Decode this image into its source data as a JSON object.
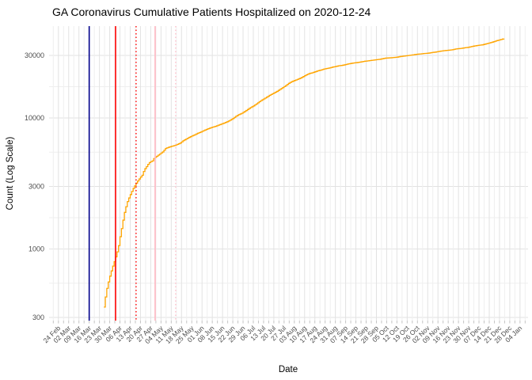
{
  "title": "GA Coronavirus Cumulative Patients Hospitalized on 2020-12-24",
  "chart_data": {
    "type": "line",
    "title": "GA Coronavirus Cumulative Patients Hospitalized on 2020-12-24",
    "xlabel": "Date",
    "ylabel": "Count (Log Scale)",
    "y_scale": "log10",
    "grid": true,
    "legend": "none",
    "y_ticks": [
      300,
      1000,
      3000,
      10000,
      30000
    ],
    "y_tick_labels": [
      "300",
      "1000",
      "3000",
      "10000",
      "30000"
    ],
    "y_minor_gridlines": [
      548,
      1732,
      5477,
      17320
    ],
    "x_first_tick": "2020-02-24",
    "x_tick_interval_days": 7,
    "x_tick_labels": [
      "24 Feb",
      "02 Mar",
      "09 Mar",
      "16 Mar",
      "23 Mar",
      "30 Mar",
      "06 Apr",
      "13 Apr",
      "20 Apr",
      "27 Apr",
      "04 May",
      "11 May",
      "18 May",
      "25 May",
      "01 Jun",
      "08 Jun",
      "15 Jun",
      "22 Jun",
      "29 Jun",
      "06 Jul",
      "13 Jul",
      "20 Jul",
      "27 Jul",
      "03 Aug",
      "10 Aug",
      "17 Aug",
      "24 Aug",
      "31 Aug",
      "07 Sep",
      "14 Sep",
      "21 Sep",
      "28 Sep",
      "05 Oct",
      "12 Oct",
      "19 Oct",
      "26 Oct",
      "02 Nov",
      "09 Nov",
      "16 Nov",
      "23 Nov",
      "30 Nov",
      "07 Dec",
      "14 Dec",
      "21 Dec",
      "28 Dec",
      "04 Jan"
    ],
    "reference_lines": [
      {
        "x": "2020-03-16",
        "color": "#00008B",
        "style": "solid"
      },
      {
        "x": "2020-04-03",
        "color": "#FF0000",
        "style": "solid"
      },
      {
        "x": "2020-04-17",
        "color": "#FF0000",
        "style": "dotted"
      },
      {
        "x": "2020-04-30",
        "color": "#FFB6C1",
        "style": "solid"
      },
      {
        "x": "2020-05-14",
        "color": "#FFC0CB",
        "style": "dotted"
      }
    ],
    "series": [
      {
        "name": "cumulative-hospitalized",
        "color": "#FFA500",
        "points": [
          [
            "2020-03-26",
            360
          ],
          [
            "2020-03-27",
            430
          ],
          [
            "2020-03-28",
            500
          ],
          [
            "2020-03-29",
            560
          ],
          [
            "2020-03-30",
            620
          ],
          [
            "2020-03-31",
            680
          ],
          [
            "2020-04-01",
            740
          ],
          [
            "2020-04-02",
            800
          ],
          [
            "2020-04-03",
            870
          ],
          [
            "2020-04-04",
            950
          ],
          [
            "2020-04-05",
            1060
          ],
          [
            "2020-04-06",
            1240
          ],
          [
            "2020-04-07",
            1430
          ],
          [
            "2020-04-08",
            1660
          ],
          [
            "2020-04-09",
            1900
          ],
          [
            "2020-04-10",
            2100
          ],
          [
            "2020-04-11",
            2300
          ],
          [
            "2020-04-12",
            2450
          ],
          [
            "2020-04-13",
            2600
          ],
          [
            "2020-04-14",
            2750
          ],
          [
            "2020-04-15",
            2900
          ],
          [
            "2020-04-16",
            3030
          ],
          [
            "2020-04-17",
            3180
          ],
          [
            "2020-04-18",
            3300
          ],
          [
            "2020-04-19",
            3420
          ],
          [
            "2020-04-20",
            3540
          ],
          [
            "2020-04-21",
            3650
          ],
          [
            "2020-04-22",
            3900
          ],
          [
            "2020-04-23",
            4100
          ],
          [
            "2020-04-24",
            4250
          ],
          [
            "2020-04-25",
            4420
          ],
          [
            "2020-04-26",
            4560
          ],
          [
            "2020-04-27",
            4640
          ],
          [
            "2020-04-28",
            4700
          ],
          [
            "2020-04-29",
            4900
          ],
          [
            "2020-04-30",
            5000
          ],
          [
            "2020-05-01",
            5100
          ],
          [
            "2020-05-03",
            5300
          ],
          [
            "2020-05-05",
            5500
          ],
          [
            "2020-05-07",
            5850
          ],
          [
            "2020-05-09",
            5970
          ],
          [
            "2020-05-11",
            6070
          ],
          [
            "2020-05-13",
            6150
          ],
          [
            "2020-05-15",
            6280
          ],
          [
            "2020-05-17",
            6430
          ],
          [
            "2020-05-19",
            6700
          ],
          [
            "2020-05-21",
            6900
          ],
          [
            "2020-05-23",
            7100
          ],
          [
            "2020-05-25",
            7280
          ],
          [
            "2020-05-27",
            7450
          ],
          [
            "2020-05-29",
            7650
          ],
          [
            "2020-05-31",
            7800
          ],
          [
            "2020-06-02",
            8000
          ],
          [
            "2020-06-04",
            8180
          ],
          [
            "2020-06-06",
            8350
          ],
          [
            "2020-06-08",
            8500
          ],
          [
            "2020-06-10",
            8630
          ],
          [
            "2020-06-12",
            8800
          ],
          [
            "2020-06-14",
            8970
          ],
          [
            "2020-06-16",
            9150
          ],
          [
            "2020-06-18",
            9350
          ],
          [
            "2020-06-20",
            9600
          ],
          [
            "2020-06-22",
            9900
          ],
          [
            "2020-06-24",
            10300
          ],
          [
            "2020-06-26",
            10600
          ],
          [
            "2020-06-28",
            10850
          ],
          [
            "2020-06-30",
            11200
          ],
          [
            "2020-07-02",
            11600
          ],
          [
            "2020-07-04",
            12000
          ],
          [
            "2020-07-06",
            12350
          ],
          [
            "2020-07-08",
            12800
          ],
          [
            "2020-07-10",
            13300
          ],
          [
            "2020-07-12",
            13750
          ],
          [
            "2020-07-14",
            14180
          ],
          [
            "2020-07-16",
            14640
          ],
          [
            "2020-07-18",
            15100
          ],
          [
            "2020-07-20",
            15500
          ],
          [
            "2020-07-22",
            15940
          ],
          [
            "2020-07-24",
            16500
          ],
          [
            "2020-07-26",
            17050
          ],
          [
            "2020-07-28",
            17650
          ],
          [
            "2020-07-30",
            18350
          ],
          [
            "2020-08-01",
            18900
          ],
          [
            "2020-08-03",
            19300
          ],
          [
            "2020-08-05",
            19700
          ],
          [
            "2020-08-07",
            20130
          ],
          [
            "2020-08-09",
            20700
          ],
          [
            "2020-08-11",
            21300
          ],
          [
            "2020-08-13",
            21800
          ],
          [
            "2020-08-15",
            22100
          ],
          [
            "2020-08-17",
            22500
          ],
          [
            "2020-08-19",
            22900
          ],
          [
            "2020-08-21",
            23200
          ],
          [
            "2020-08-23",
            23600
          ],
          [
            "2020-08-25",
            23850
          ],
          [
            "2020-08-27",
            24100
          ],
          [
            "2020-08-29",
            24450
          ],
          [
            "2020-08-31",
            24700
          ],
          [
            "2020-09-02",
            25000
          ],
          [
            "2020-09-04",
            25150
          ],
          [
            "2020-09-06",
            25400
          ],
          [
            "2020-09-08",
            25750
          ],
          [
            "2020-09-10",
            26000
          ],
          [
            "2020-09-12",
            26250
          ],
          [
            "2020-09-14",
            26400
          ],
          [
            "2020-09-16",
            26600
          ],
          [
            "2020-09-18",
            26850
          ],
          [
            "2020-09-20",
            27100
          ],
          [
            "2020-09-22",
            27250
          ],
          [
            "2020-09-24",
            27450
          ],
          [
            "2020-09-26",
            27650
          ],
          [
            "2020-09-28",
            27850
          ],
          [
            "2020-09-30",
            28000
          ],
          [
            "2020-10-02",
            28300
          ],
          [
            "2020-10-04",
            28600
          ],
          [
            "2020-10-06",
            28700
          ],
          [
            "2020-10-08",
            28800
          ],
          [
            "2020-10-10",
            28950
          ],
          [
            "2020-10-12",
            29100
          ],
          [
            "2020-10-14",
            29400
          ],
          [
            "2020-10-16",
            29600
          ],
          [
            "2020-10-18",
            29800
          ],
          [
            "2020-10-20",
            30000
          ],
          [
            "2020-10-22",
            30200
          ],
          [
            "2020-10-24",
            30450
          ],
          [
            "2020-10-26",
            30650
          ],
          [
            "2020-10-28",
            30800
          ],
          [
            "2020-10-30",
            31000
          ],
          [
            "2020-11-01",
            31100
          ],
          [
            "2020-11-03",
            31300
          ],
          [
            "2020-11-05",
            31600
          ],
          [
            "2020-11-07",
            31800
          ],
          [
            "2020-11-09",
            32100
          ],
          [
            "2020-11-11",
            32400
          ],
          [
            "2020-11-13",
            32600
          ],
          [
            "2020-11-15",
            32800
          ],
          [
            "2020-11-17",
            32950
          ],
          [
            "2020-11-19",
            33200
          ],
          [
            "2020-11-21",
            33600
          ],
          [
            "2020-11-23",
            33800
          ],
          [
            "2020-11-25",
            34000
          ],
          [
            "2020-11-27",
            34300
          ],
          [
            "2020-11-29",
            34500
          ],
          [
            "2020-12-01",
            34900
          ],
          [
            "2020-12-03",
            35300
          ],
          [
            "2020-12-05",
            35600
          ],
          [
            "2020-12-07",
            35900
          ],
          [
            "2020-12-09",
            36100
          ],
          [
            "2020-12-11",
            36600
          ],
          [
            "2020-12-13",
            37100
          ],
          [
            "2020-12-15",
            37600
          ],
          [
            "2020-12-17",
            38200
          ],
          [
            "2020-12-19",
            38900
          ],
          [
            "2020-12-21",
            39400
          ],
          [
            "2020-12-23",
            40000
          ],
          [
            "2020-12-24",
            40300
          ]
        ]
      }
    ]
  },
  "colors": {
    "grid_major": "#E2E2E2",
    "grid_minor": "#EFEFEF",
    "tick_mark": "#C4C4C4",
    "axis_text": "#4D4D4D",
    "title_text": "#000000"
  }
}
